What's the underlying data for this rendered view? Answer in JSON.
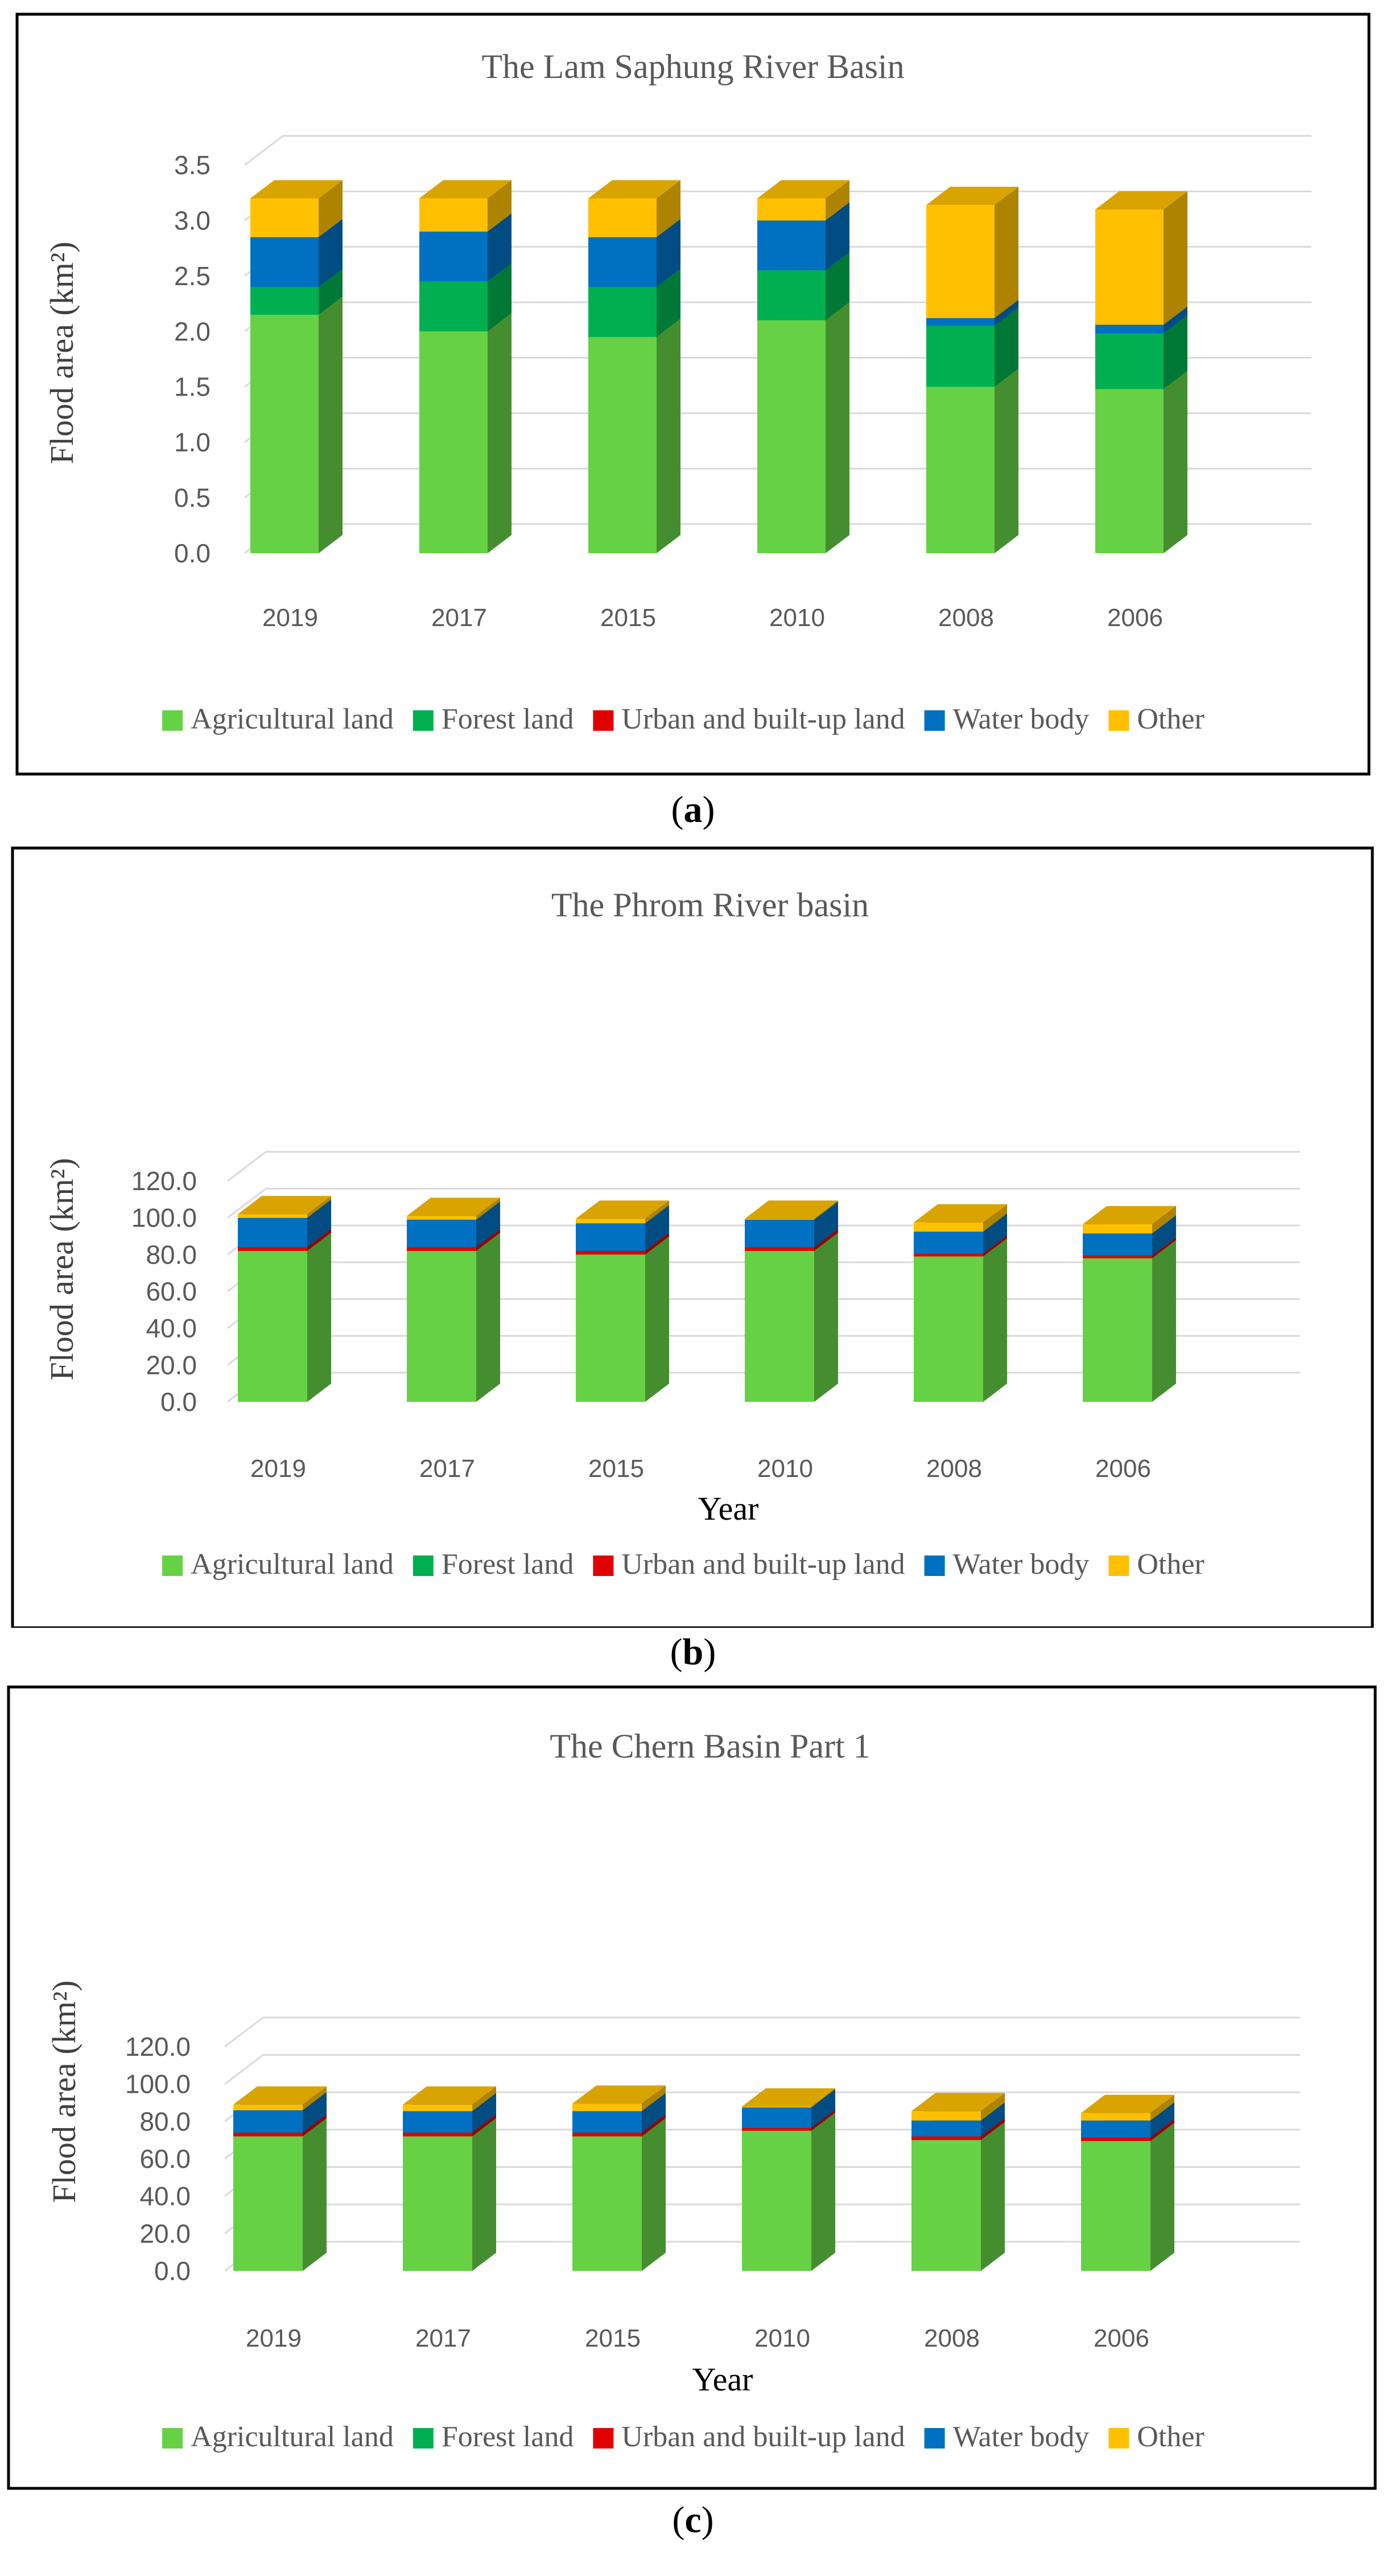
{
  "colors": {
    "agricultural": "#66D145",
    "forest": "#00B050",
    "urban": "#E00000",
    "water": "#0070C0",
    "other": "#FFC000"
  },
  "captions": [
    {
      "open": "(",
      "letter": "a",
      "close": ")"
    },
    {
      "open": "(",
      "letter": "b",
      "close": ")"
    },
    {
      "open": "(",
      "letter": "c",
      "close": ")"
    }
  ],
  "chart_data": [
    {
      "type": "bar",
      "stacked": true,
      "title": "The Lam Saphung River Basin",
      "xlabel": "",
      "ylabel": "Flood area (km²)",
      "ylim": [
        0,
        3.5
      ],
      "yticks": [
        "0.0",
        "0.5",
        "1.0",
        "1.5",
        "2.0",
        "2.5",
        "3.0",
        "3.5"
      ],
      "categories": [
        "2019",
        "2017",
        "2015",
        "2010",
        "2008",
        "2006"
      ],
      "series": [
        {
          "name": "Agricultural land",
          "key": "agricultural",
          "values": [
            2.15,
            2.0,
            1.95,
            2.1,
            1.5,
            1.48
          ]
        },
        {
          "name": "Forest land",
          "key": "forest",
          "values": [
            0.25,
            0.45,
            0.45,
            0.45,
            0.55,
            0.5
          ]
        },
        {
          "name": "Urban and built-up land",
          "key": "urban",
          "values": [
            0.0,
            0.0,
            0.0,
            0.0,
            0.0,
            0.0
          ]
        },
        {
          "name": "Water body",
          "key": "water",
          "values": [
            0.45,
            0.45,
            0.45,
            0.45,
            0.07,
            0.08
          ]
        },
        {
          "name": "Other",
          "key": "other",
          "values": [
            0.35,
            0.3,
            0.35,
            0.2,
            1.02,
            1.04
          ]
        }
      ],
      "legend": "bottom"
    },
    {
      "type": "bar",
      "stacked": true,
      "title": "The Phrom River basin",
      "xlabel": "Year",
      "ylabel": "Flood area (km²)",
      "ylim": [
        0,
        120
      ],
      "yticks": [
        "0.0",
        "20.0",
        "40.0",
        "60.0",
        "80.0",
        "100.0",
        "120.0"
      ],
      "categories": [
        "2019",
        "2017",
        "2015",
        "2010",
        "2008",
        "2006"
      ],
      "series": [
        {
          "name": "Agricultural land",
          "key": "agricultural",
          "values": [
            82,
            82,
            80,
            82,
            79,
            78
          ]
        },
        {
          "name": "Forest land",
          "key": "forest",
          "values": [
            0,
            0,
            0,
            0,
            0,
            0
          ]
        },
        {
          "name": "Urban and built-up land",
          "key": "urban",
          "values": [
            2,
            2,
            2,
            2,
            1.5,
            1.5
          ]
        },
        {
          "name": "Water body",
          "key": "water",
          "values": [
            16,
            15,
            15,
            15,
            12,
            12
          ]
        },
        {
          "name": "Other",
          "key": "other",
          "values": [
            2,
            2,
            2.5,
            0.5,
            5,
            5
          ]
        }
      ],
      "legend": "bottom"
    },
    {
      "type": "bar",
      "stacked": true,
      "title": "The Chern Basin Part 1",
      "xlabel": "Year",
      "ylabel": "Flood area (km²)",
      "ylim": [
        0,
        120
      ],
      "yticks": [
        "0.0",
        "20.0",
        "40.0",
        "60.0",
        "80.0",
        "100.0",
        "120.0"
      ],
      "categories": [
        "2019",
        "2017",
        "2015",
        "2010",
        "2008",
        "2006"
      ],
      "series": [
        {
          "name": "Agricultural land",
          "key": "agricultural",
          "values": [
            72,
            72,
            72,
            75,
            70,
            69.5
          ]
        },
        {
          "name": "Forest land",
          "key": "forest",
          "values": [
            0,
            0,
            0,
            0,
            0,
            0
          ]
        },
        {
          "name": "Urban and built-up land",
          "key": "urban",
          "values": [
            2,
            2,
            2,
            1.5,
            2,
            2
          ]
        },
        {
          "name": "Water body",
          "key": "water",
          "values": [
            12,
            11.5,
            11.5,
            11,
            8.5,
            9
          ]
        },
        {
          "name": "Other",
          "key": "other",
          "values": [
            3,
            3.5,
            4,
            0.5,
            5,
            4
          ]
        }
      ],
      "legend": "bottom"
    }
  ]
}
